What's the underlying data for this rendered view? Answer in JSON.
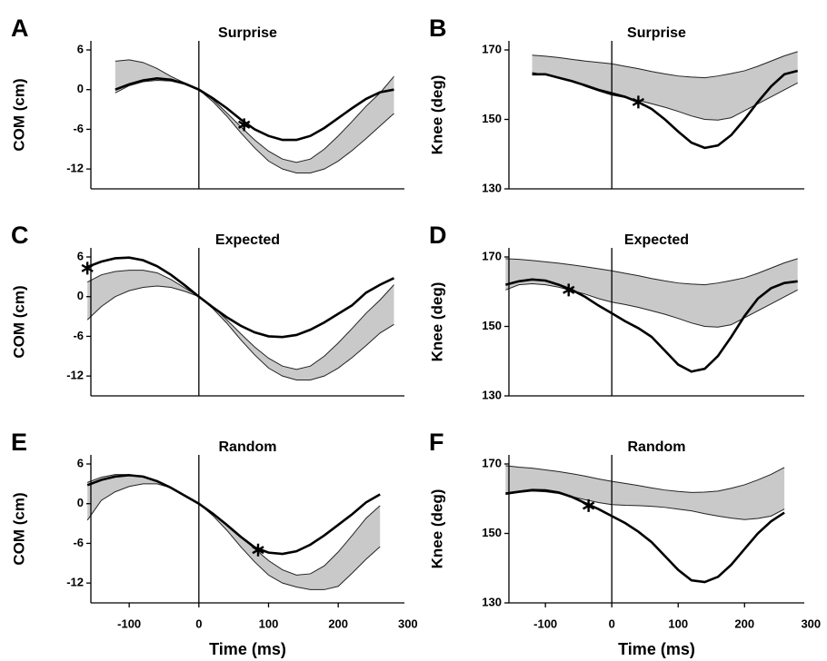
{
  "chart_data": [
    {
      "type": "line",
      "label": "A",
      "title": "Surprise",
      "ylabel": "COM (cm)",
      "xlim": [
        -155,
        295
      ],
      "ylim": [
        -15,
        6
      ],
      "yticks": [
        6,
        0,
        -6,
        -12
      ],
      "vline": 0,
      "x": [
        -120,
        -100,
        -80,
        -60,
        -40,
        -20,
        0,
        20,
        40,
        60,
        80,
        100,
        120,
        140,
        160,
        180,
        200,
        220,
        240,
        260,
        280
      ],
      "line": [
        0,
        0.8,
        1.4,
        1.7,
        1.5,
        0.9,
        0,
        -1.3,
        -2.8,
        -4.5,
        -6,
        -7,
        -7.6,
        -7.6,
        -7,
        -5.8,
        -4.3,
        -2.8,
        -1.4,
        -0.4,
        0
      ],
      "band_upper": [
        4.3,
        4.5,
        4.1,
        3.2,
        2.0,
        1.0,
        0,
        -1.5,
        -3.5,
        -5.6,
        -7.6,
        -9.3,
        -10.5,
        -11,
        -10.5,
        -9,
        -7,
        -4.8,
        -2.5,
        -0.5,
        2
      ],
      "band_lower": [
        -0.5,
        0.6,
        1.2,
        1.4,
        1.3,
        0.8,
        0,
        -1.8,
        -4,
        -6.5,
        -8.8,
        -10.8,
        -12,
        -12.6,
        -12.6,
        -12,
        -10.8,
        -9.2,
        -7.4,
        -5.5,
        -3.6
      ],
      "marker": {
        "x": 65,
        "y": -5.3
      }
    },
    {
      "type": "line",
      "label": "B",
      "title": "Surprise",
      "ylabel": "Knee (deg)",
      "xlim": [
        -155,
        290
      ],
      "ylim": [
        130,
        170
      ],
      "yticks": [
        170,
        150,
        130
      ],
      "vline": 0,
      "x": [
        -120,
        -100,
        -80,
        -60,
        -40,
        -20,
        0,
        20,
        40,
        60,
        80,
        100,
        120,
        140,
        160,
        180,
        200,
        220,
        240,
        260,
        280
      ],
      "line": [
        163,
        163,
        162,
        161,
        159.8,
        158.5,
        157.5,
        156.5,
        155,
        153,
        150,
        146.5,
        143.3,
        141.8,
        142.5,
        145.5,
        150,
        155,
        159.5,
        163,
        164
      ],
      "band_upper": [
        168.5,
        168.2,
        167.8,
        167.3,
        166.8,
        166.4,
        166,
        165.3,
        164.6,
        163.8,
        163.1,
        162.5,
        162.2,
        162,
        162.5,
        163.2,
        164,
        165.3,
        166.8,
        168.3,
        169.5
      ],
      "band_lower": [
        163.5,
        162.8,
        162,
        161.2,
        159.5,
        158.2,
        157,
        156.3,
        155.5,
        154.5,
        153.5,
        152.3,
        151,
        150,
        149.8,
        150.5,
        152.5,
        154.5,
        156.5,
        158.5,
        160.5
      ],
      "marker": {
        "x": 40,
        "y": 155
      }
    },
    {
      "type": "line",
      "label": "C",
      "title": "Expected",
      "ylabel": "COM (cm)",
      "xlim": [
        -155,
        295
      ],
      "ylim": [
        -15,
        6
      ],
      "yticks": [
        6,
        0,
        -6,
        -12
      ],
      "vline": 0,
      "x": [
        -160,
        -140,
        -120,
        -100,
        -80,
        -60,
        -40,
        -20,
        0,
        20,
        40,
        60,
        80,
        100,
        120,
        140,
        160,
        180,
        200,
        220,
        240,
        260,
        280
      ],
      "line": [
        4.5,
        5.3,
        5.8,
        5.9,
        5.5,
        4.6,
        3.3,
        1.7,
        0,
        -1.6,
        -3.1,
        -4.4,
        -5.4,
        -6,
        -6.1,
        -5.8,
        -5,
        -3.9,
        -2.6,
        -1.3,
        0.6,
        1.8,
        2.8
      ],
      "band_upper": [
        2.2,
        3.3,
        3.8,
        4,
        4,
        3.6,
        2.6,
        1.3,
        0,
        -1.5,
        -3.5,
        -5.6,
        -7.6,
        -9.3,
        -10.5,
        -11,
        -10.5,
        -9,
        -7,
        -4.8,
        -2.5,
        -0.5,
        1.8
      ],
      "band_lower": [
        -3.5,
        -1.5,
        0,
        0.9,
        1.4,
        1.6,
        1.4,
        0.8,
        0,
        -1.8,
        -4,
        -6.5,
        -8.8,
        -10.8,
        -12,
        -12.6,
        -12.6,
        -12,
        -10.8,
        -9.2,
        -7.4,
        -5.5,
        -4.2
      ],
      "marker": {
        "x": -160,
        "y": 4.3
      }
    },
    {
      "type": "line",
      "label": "D",
      "title": "Expected",
      "ylabel": "Knee (deg)",
      "xlim": [
        -155,
        290
      ],
      "ylim": [
        130,
        170
      ],
      "yticks": [
        170,
        150,
        130
      ],
      "vline": 0,
      "x": [
        -160,
        -140,
        -120,
        -100,
        -80,
        -60,
        -40,
        -20,
        0,
        20,
        40,
        60,
        80,
        100,
        120,
        140,
        160,
        180,
        200,
        220,
        240,
        260,
        280
      ],
      "line": [
        162,
        163,
        163.5,
        163.2,
        162,
        160.5,
        158.5,
        156,
        153.8,
        151.5,
        149.5,
        147,
        143,
        139,
        137,
        137.8,
        141.5,
        147,
        153,
        158,
        161,
        162.5,
        163
      ],
      "band_upper": [
        169.5,
        169.3,
        169,
        168.6,
        168.2,
        167.7,
        167.2,
        166.6,
        166,
        165.3,
        164.6,
        163.8,
        163.1,
        162.5,
        162.2,
        162,
        162.5,
        163.2,
        164,
        165.3,
        166.8,
        168.3,
        169.5
      ],
      "band_lower": [
        160.5,
        162,
        162.3,
        162,
        161.3,
        160.3,
        159.3,
        158,
        157,
        156.3,
        155.5,
        154.5,
        153.5,
        152.3,
        151,
        150,
        149.8,
        150.5,
        152.5,
        154.5,
        156.5,
        158.5,
        160.5
      ],
      "marker": {
        "x": -65,
        "y": 160.5
      }
    },
    {
      "type": "line",
      "label": "E",
      "title": "Random",
      "ylabel": "COM (cm)",
      "xlabel": "Time (ms)",
      "xlim": [
        -155,
        295
      ],
      "ylim": [
        -15,
        6
      ],
      "yticks": [
        6,
        0,
        -6,
        -12
      ],
      "xticks": [
        -100,
        0,
        100,
        200,
        300
      ],
      "vline": 0,
      "x": [
        -160,
        -140,
        -120,
        -100,
        -80,
        -60,
        -40,
        -20,
        0,
        20,
        40,
        60,
        80,
        100,
        120,
        140,
        160,
        180,
        200,
        220,
        240,
        260
      ],
      "line": [
        2.8,
        3.6,
        4.1,
        4.3,
        4.1,
        3.4,
        2.4,
        1.2,
        0,
        -1.5,
        -3.2,
        -5,
        -6.6,
        -7.4,
        -7.6,
        -7.2,
        -6.2,
        -4.8,
        -3.2,
        -1.6,
        0.2,
        1.4
      ],
      "band_upper": [
        3.2,
        4,
        4.4,
        4.4,
        4,
        3.5,
        2.5,
        1.2,
        0,
        -1.5,
        -3.3,
        -5,
        -6.8,
        -8.6,
        -10,
        -10.8,
        -10.6,
        -9.4,
        -7.3,
        -4.8,
        -2.2,
        -0.3
      ],
      "band_lower": [
        -2.5,
        0.5,
        1.8,
        2.6,
        3,
        3,
        2.4,
        1.2,
        0,
        -1.8,
        -4,
        -6.5,
        -8.8,
        -10.8,
        -12,
        -12.6,
        -13,
        -13,
        -12.5,
        -10.5,
        -8.4,
        -6.5
      ],
      "marker": {
        "x": 85,
        "y": -7
      }
    },
    {
      "type": "line",
      "label": "F",
      "title": "Random",
      "ylabel": "Knee (deg)",
      "xlabel": "Time (ms)",
      "xlim": [
        -155,
        290
      ],
      "ylim": [
        130,
        170
      ],
      "yticks": [
        170,
        150,
        130
      ],
      "xticks": [
        -100,
        0,
        100,
        200,
        300
      ],
      "vline": 0,
      "x": [
        -160,
        -140,
        -120,
        -100,
        -80,
        -60,
        -40,
        -20,
        0,
        20,
        40,
        60,
        80,
        100,
        120,
        140,
        160,
        180,
        200,
        220,
        240,
        260
      ],
      "line": [
        161.5,
        162,
        162.5,
        162.4,
        161.8,
        160.5,
        158.7,
        157,
        155,
        153,
        150.5,
        147.5,
        143.5,
        139.5,
        136.5,
        136,
        137.5,
        141,
        145.5,
        150,
        153.5,
        156
      ],
      "band_upper": [
        169.5,
        169.1,
        168.8,
        168.3,
        167.8,
        167.2,
        166.5,
        165.7,
        165,
        164.4,
        163.8,
        163.1,
        162.5,
        162.1,
        161.8,
        161.9,
        162.2,
        163,
        164,
        165.4,
        167,
        169
      ],
      "band_lower": [
        161.2,
        161.8,
        162.2,
        162,
        161.5,
        160.6,
        159.7,
        158.9,
        158.3,
        158.1,
        158,
        157.8,
        157.5,
        157,
        156.5,
        155.7,
        155,
        154.4,
        154,
        154.3,
        155,
        157
      ],
      "marker": {
        "x": -35,
        "y": 158
      }
    }
  ]
}
